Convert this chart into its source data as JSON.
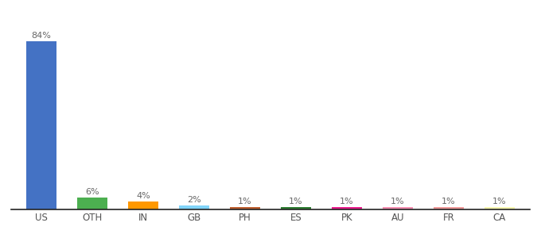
{
  "categories": [
    "US",
    "OTH",
    "IN",
    "GB",
    "PH",
    "ES",
    "PK",
    "AU",
    "FR",
    "CA"
  ],
  "values": [
    84,
    6,
    4,
    2,
    1,
    1,
    1,
    1,
    1,
    1
  ],
  "labels": [
    "84%",
    "6%",
    "4%",
    "2%",
    "1%",
    "1%",
    "1%",
    "1%",
    "1%",
    "1%"
  ],
  "bar_colors": [
    "#4472c4",
    "#4caf50",
    "#ff9800",
    "#81d4fa",
    "#bf6030",
    "#2e7d32",
    "#e91e8c",
    "#f48fb1",
    "#ef9a9a",
    "#f5f5b0"
  ],
  "background_color": "#ffffff",
  "ylim": [
    0,
    95
  ],
  "label_fontsize": 8,
  "tick_fontsize": 8.5,
  "fig_width": 6.8,
  "fig_height": 3.0,
  "dpi": 100
}
